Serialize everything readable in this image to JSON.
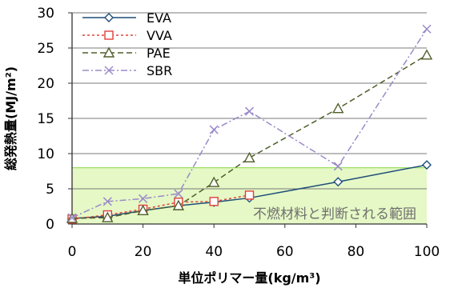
{
  "chart_data": {
    "type": "line",
    "title": "",
    "xlabel": "単位ポリマー量(kg/m³)",
    "ylabel": "総発熱量(MJ/m²)",
    "xlim": [
      0,
      100
    ],
    "ylim": [
      0,
      30
    ],
    "x_ticks": [
      "0",
      "20",
      "40",
      "60",
      "80",
      "100"
    ],
    "y_ticks": [
      "0",
      "5",
      "10",
      "15",
      "20",
      "25",
      "30"
    ],
    "grid": "horizontal",
    "legend_position": "top-left",
    "series": [
      {
        "name": "EVA",
        "color": "#1f4e79",
        "dash": "solid",
        "marker": "diamond",
        "points": [
          [
            0,
            0.8
          ],
          [
            10,
            1.1
          ],
          [
            20,
            1.9
          ],
          [
            30,
            2.6
          ],
          [
            40,
            3.1
          ],
          [
            50,
            3.7
          ],
          [
            75,
            6.0
          ],
          [
            100,
            8.4
          ]
        ]
      },
      {
        "name": "VVA",
        "color": "#e0403a",
        "dash": "dotted",
        "marker": "square",
        "points": [
          [
            0,
            0.7
          ],
          [
            10,
            1.3
          ],
          [
            20,
            2.1
          ],
          [
            30,
            3.1
          ],
          [
            40,
            3.2
          ],
          [
            50,
            4.1
          ]
        ]
      },
      {
        "name": "PAE",
        "color": "#4f5f2a",
        "dash": "dashed",
        "marker": "triangle",
        "points": [
          [
            0,
            0.8
          ],
          [
            10,
            0.9
          ],
          [
            20,
            1.9
          ],
          [
            30,
            2.6
          ],
          [
            40,
            5.9
          ],
          [
            50,
            9.4
          ],
          [
            75,
            16.4
          ],
          [
            100,
            24.0
          ]
        ]
      },
      {
        "name": "SBR",
        "color": "#9b8ac9",
        "dash": "dashdot",
        "marker": "x",
        "points": [
          [
            0,
            0.9
          ],
          [
            10,
            3.2
          ],
          [
            20,
            3.6
          ],
          [
            30,
            4.3
          ],
          [
            40,
            13.4
          ],
          [
            50,
            16.0
          ],
          [
            75,
            8.2
          ],
          [
            100,
            27.7
          ]
        ]
      }
    ],
    "annotations": [
      {
        "text": "不燃材料と判断される範囲",
        "band_y": [
          0,
          8
        ],
        "fill": "#e5f8c6",
        "edge": "#9ddf63"
      }
    ]
  }
}
